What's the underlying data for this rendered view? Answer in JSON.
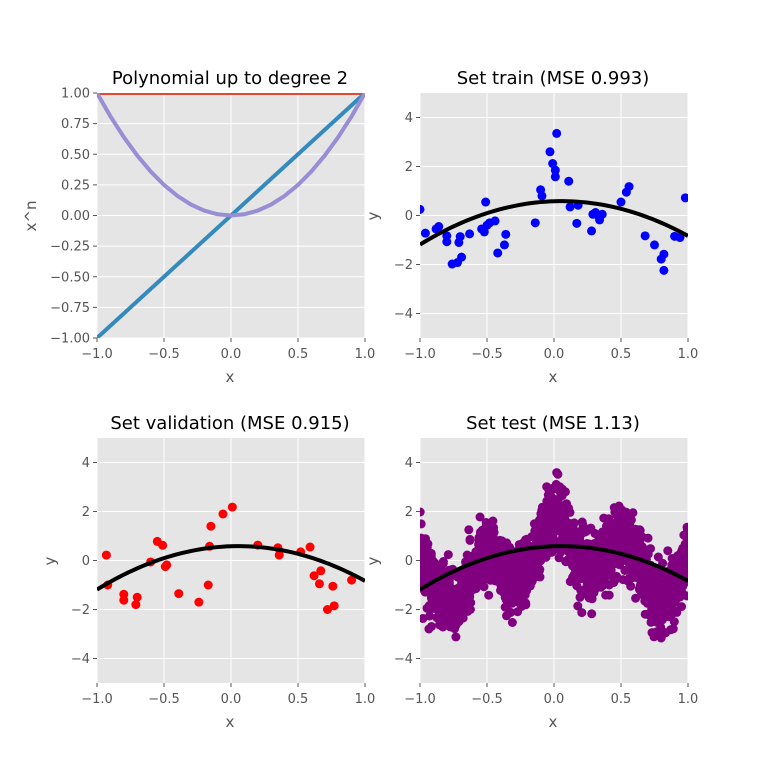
{
  "colors": {
    "axes_bg": "#E5E5E5",
    "grid": "#FFFFFF",
    "tick_text": "#555555",
    "degree0": "#E24A33",
    "degree1": "#348ABD",
    "degree2": "#988ED5",
    "fit": "#000000",
    "train": "#0000FF",
    "validation": "#FF0000",
    "test": "#800080"
  },
  "chart_data": [
    {
      "id": "poly",
      "type": "line",
      "title": "Polynomial up to degree 2",
      "xlabel": "x",
      "ylabel": "x^n",
      "xlim": [
        -1,
        1
      ],
      "ylim": [
        -1,
        1
      ],
      "xticks": [
        -1.0,
        -0.5,
        0.0,
        0.5,
        1.0
      ],
      "xtick_labels": [
        "−1.0",
        "−0.5",
        "0.0",
        "0.5",
        "1.0"
      ],
      "yticks": [
        -1.0,
        -0.75,
        -0.5,
        -0.25,
        0.0,
        0.25,
        0.5,
        0.75,
        1.0
      ],
      "ytick_labels": [
        "−1.00",
        "−0.75",
        "−0.50",
        "−0.25",
        "0.00",
        "0.25",
        "0.50",
        "0.75",
        "1.00"
      ],
      "grid": true,
      "series": [
        {
          "degree": 0,
          "color": "#E24A33",
          "x": [
            -1,
            1
          ],
          "y": [
            1,
            1
          ]
        },
        {
          "degree": 1,
          "color": "#348ABD",
          "x": [
            -1,
            1
          ],
          "y": [
            -1,
            1
          ]
        },
        {
          "degree": 2,
          "color": "#988ED5",
          "x": [
            -1,
            -0.9,
            -0.8,
            -0.7,
            -0.6,
            -0.5,
            -0.4,
            -0.3,
            -0.2,
            -0.1,
            0,
            0.1,
            0.2,
            0.3,
            0.4,
            0.5,
            0.6,
            0.7,
            0.8,
            0.9,
            1
          ],
          "y": [
            1,
            0.81,
            0.64,
            0.49,
            0.36,
            0.25,
            0.16,
            0.09,
            0.04,
            0.01,
            0,
            0.01,
            0.04,
            0.09,
            0.16,
            0.25,
            0.36,
            0.49,
            0.64,
            0.81,
            1
          ]
        }
      ]
    },
    {
      "id": "train",
      "type": "scatter",
      "title": "Set train (MSE 0.993)",
      "xlabel": "x",
      "ylabel": "y",
      "xlim": [
        -1,
        1
      ],
      "ylim": [
        -5,
        5
      ],
      "xticks": [
        -1.0,
        -0.5,
        0.0,
        0.5,
        1.0
      ],
      "xtick_labels": [
        "−1.0",
        "−0.5",
        "0.0",
        "0.5",
        "1.0"
      ],
      "yticks": [
        -4,
        -2,
        0,
        2,
        4
      ],
      "ytick_labels": [
        "−4",
        "−2",
        "0",
        "2",
        "4"
      ],
      "grid": true,
      "fit": {
        "coefficients": [
          0.582,
          0.176,
          -1.592
        ]
      },
      "points_color": "#0000FF",
      "points": [
        [
          -1.0,
          0.25
        ],
        [
          -0.96,
          -0.72
        ],
        [
          -0.88,
          -0.55
        ],
        [
          -0.86,
          -0.45
        ],
        [
          -0.8,
          -1.07
        ],
        [
          -0.8,
          -0.83
        ],
        [
          -0.76,
          -1.98
        ],
        [
          -0.72,
          -1.92
        ],
        [
          -0.71,
          -1.1
        ],
        [
          -0.7,
          -0.86
        ],
        [
          -0.69,
          -1.7
        ],
        [
          -0.63,
          -0.75
        ],
        [
          -0.54,
          -0.55
        ],
        [
          -0.52,
          -0.67
        ],
        [
          -0.51,
          0.55
        ],
        [
          -0.5,
          -0.4
        ],
        [
          -0.48,
          -0.3
        ],
        [
          -0.44,
          -0.22
        ],
        [
          -0.42,
          -1.53
        ],
        [
          -0.37,
          -1.2
        ],
        [
          -0.36,
          -0.77
        ],
        [
          -0.14,
          -0.3
        ],
        [
          -0.1,
          1.05
        ],
        [
          -0.09,
          0.8
        ],
        [
          -0.03,
          2.6
        ],
        [
          -0.01,
          2.12
        ],
        [
          0.01,
          1.85
        ],
        [
          0.01,
          1.58
        ],
        [
          0.02,
          3.35
        ],
        [
          0.11,
          1.4
        ],
        [
          0.12,
          0.35
        ],
        [
          0.17,
          -0.32
        ],
        [
          0.18,
          0.42
        ],
        [
          0.28,
          -0.63
        ],
        [
          0.29,
          0.05
        ],
        [
          0.31,
          0.12
        ],
        [
          0.33,
          0.0
        ],
        [
          0.34,
          -0.18
        ],
        [
          0.36,
          0.05
        ],
        [
          0.5,
          0.55
        ],
        [
          0.54,
          0.95
        ],
        [
          0.56,
          1.18
        ],
        [
          0.68,
          -0.83
        ],
        [
          0.75,
          -1.2
        ],
        [
          0.8,
          -1.78
        ],
        [
          0.82,
          -1.58
        ],
        [
          0.82,
          -2.24
        ],
        [
          0.9,
          -0.85
        ],
        [
          0.94,
          -0.9
        ],
        [
          0.98,
          0.72
        ]
      ]
    },
    {
      "id": "validation",
      "type": "scatter",
      "title": "Set validation (MSE 0.915)",
      "xlabel": "x",
      "ylabel": "y",
      "xlim": [
        -1,
        1
      ],
      "ylim": [
        -5,
        5
      ],
      "xticks": [
        -1.0,
        -0.5,
        0.0,
        0.5,
        1.0
      ],
      "xtick_labels": [
        "−1.0",
        "−0.5",
        "0.0",
        "0.5",
        "1.0"
      ],
      "yticks": [
        -4,
        -2,
        0,
        2,
        4
      ],
      "ytick_labels": [
        "−4",
        "−2",
        "0",
        "2",
        "4"
      ],
      "grid": true,
      "fit": {
        "coefficients": [
          0.582,
          0.176,
          -1.592
        ]
      },
      "points_color": "#FF0000",
      "points": [
        [
          -0.93,
          0.22
        ],
        [
          -0.92,
          -1.0
        ],
        [
          -0.8,
          -1.38
        ],
        [
          -0.8,
          -1.62
        ],
        [
          -0.71,
          -1.8
        ],
        [
          -0.7,
          -1.5
        ],
        [
          -0.6,
          -0.06
        ],
        [
          -0.55,
          0.78
        ],
        [
          -0.51,
          0.62
        ],
        [
          -0.49,
          -0.25
        ],
        [
          -0.48,
          -0.18
        ],
        [
          -0.39,
          -1.35
        ],
        [
          -0.24,
          -1.7
        ],
        [
          -0.17,
          -1.0
        ],
        [
          -0.16,
          0.58
        ],
        [
          -0.15,
          1.4
        ],
        [
          -0.06,
          1.9
        ],
        [
          0.01,
          2.18
        ],
        [
          0.2,
          0.63
        ],
        [
          0.35,
          0.52
        ],
        [
          0.36,
          0.22
        ],
        [
          0.52,
          0.35
        ],
        [
          0.59,
          0.55
        ],
        [
          0.62,
          -0.62
        ],
        [
          0.66,
          -0.95
        ],
        [
          0.67,
          -0.42
        ],
        [
          0.72,
          -2.0
        ],
        [
          0.77,
          -1.85
        ],
        [
          0.76,
          -1.05
        ],
        [
          0.9,
          -0.8
        ]
      ]
    },
    {
      "id": "test",
      "type": "scatter",
      "title": "Set test (MSE 1.13)",
      "xlabel": "x",
      "ylabel": "y",
      "xlim": [
        -1,
        1
      ],
      "ylim": [
        -5,
        5
      ],
      "xticks": [
        -1.0,
        -0.5,
        0.0,
        0.5,
        1.0
      ],
      "xtick_labels": [
        "−1.0",
        "−0.5",
        "0.0",
        "0.5",
        "1.0"
      ],
      "yticks": [
        -4,
        -2,
        0,
        2,
        4
      ],
      "ytick_labels": [
        "−4",
        "−2",
        "0",
        "2",
        "4"
      ],
      "grid": true,
      "fit": {
        "coefficients": [
          0.582,
          0.176,
          -1.592
        ]
      },
      "points_color": "#800080",
      "points_center": [
        [
          -1.0,
          0.2
        ],
        [
          -0.95,
          -0.4
        ],
        [
          -0.9,
          -1.0
        ],
        [
          -0.85,
          -1.4
        ],
        [
          -0.8,
          -1.75
        ],
        [
          -0.75,
          -1.9
        ],
        [
          -0.7,
          -1.6
        ],
        [
          -0.65,
          -1.0
        ],
        [
          -0.6,
          -0.4
        ],
        [
          -0.55,
          0.05
        ],
        [
          -0.5,
          0.25
        ],
        [
          -0.45,
          0.1
        ],
        [
          -0.4,
          -0.3
        ],
        [
          -0.35,
          -0.7
        ],
        [
          -0.3,
          -1.0
        ],
        [
          -0.25,
          -0.9
        ],
        [
          -0.2,
          -0.5
        ],
        [
          -0.15,
          0.0
        ],
        [
          -0.1,
          0.8
        ],
        [
          -0.05,
          1.6
        ],
        [
          0.0,
          2.1
        ],
        [
          0.05,
          1.7
        ],
        [
          0.1,
          1.0
        ],
        [
          0.15,
          0.3
        ],
        [
          0.2,
          -0.2
        ],
        [
          0.25,
          -0.3
        ],
        [
          0.3,
          -0.2
        ],
        [
          0.35,
          0.1
        ],
        [
          0.4,
          0.4
        ],
        [
          0.45,
          0.7
        ],
        [
          0.5,
          0.85
        ],
        [
          0.55,
          0.75
        ],
        [
          0.6,
          0.3
        ],
        [
          0.65,
          -0.3
        ],
        [
          0.7,
          -0.9
        ],
        [
          0.75,
          -1.4
        ],
        [
          0.8,
          -1.7
        ],
        [
          0.85,
          -1.5
        ],
        [
          0.9,
          -1.0
        ],
        [
          0.95,
          -0.4
        ],
        [
          1.0,
          0.0
        ]
      ],
      "points_spread": 1.2,
      "points_count": 2000
    }
  ]
}
